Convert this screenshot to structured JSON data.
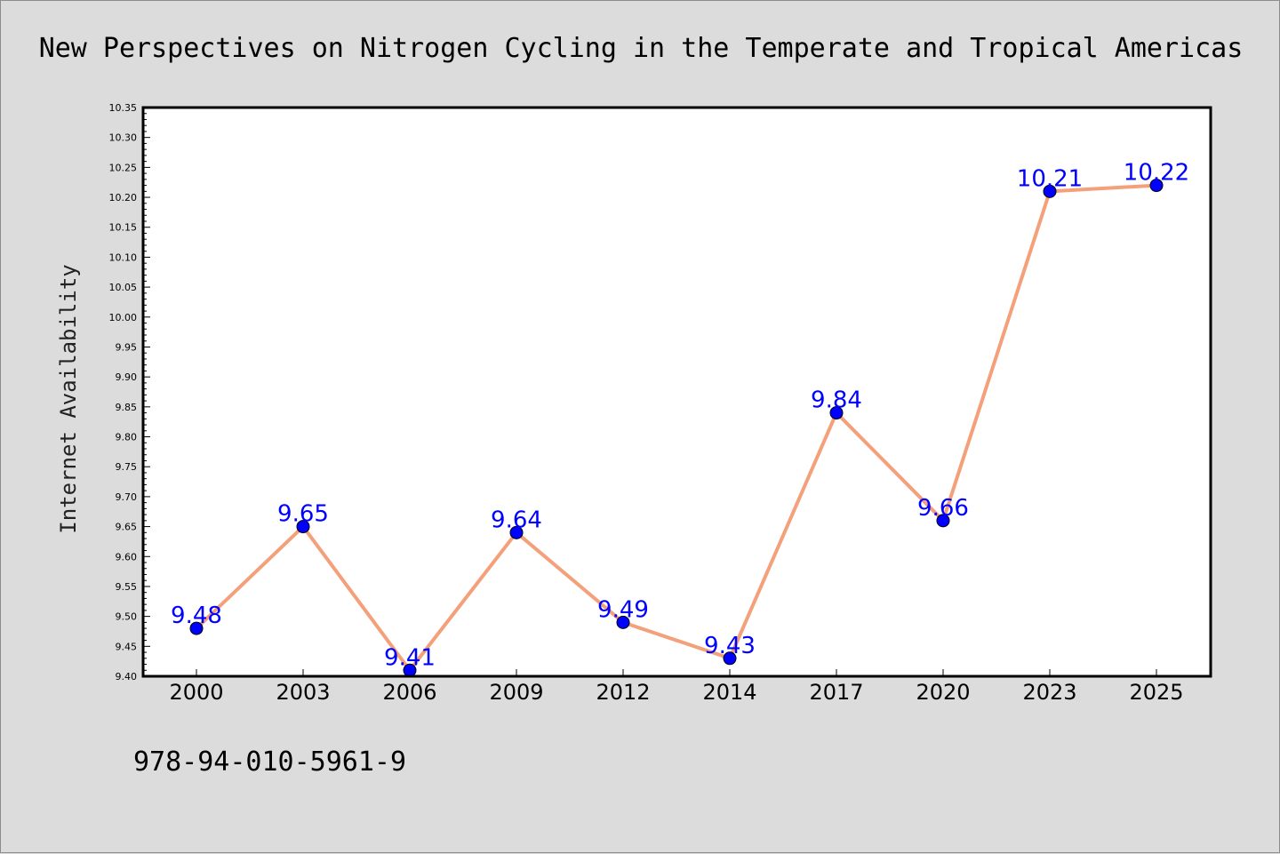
{
  "chart_data": {
    "type": "line",
    "title": "New Perspectives on Nitrogen Cycling in the Temperate and Tropical Americas",
    "xlabel": "",
    "ylabel": "Internet Availability",
    "categories": [
      "2000",
      "2003",
      "2006",
      "2009",
      "2012",
      "2014",
      "2017",
      "2020",
      "2023",
      "2025"
    ],
    "series": [
      {
        "values": [
          9.48,
          9.65,
          9.41,
          9.64,
          9.49,
          9.43,
          9.84,
          9.66,
          10.21,
          10.22
        ],
        "data_labels": [
          "9.48",
          "9.65",
          "9.41",
          "9.64",
          "9.49",
          "9.43",
          "9.84",
          "9.66",
          "10.21",
          "10.22"
        ],
        "line_color": "#f4a07a",
        "marker_color": "#0000ff"
      }
    ],
    "ylim": [
      9.4,
      10.35
    ],
    "yticks": [
      "9.40",
      "9.45",
      "9.50",
      "9.55",
      "9.60",
      "9.65",
      "9.70",
      "9.75",
      "9.80",
      "9.85",
      "9.90",
      "9.95",
      "10.00",
      "10.05",
      "10.10",
      "10.15",
      "10.20",
      "10.25",
      "10.30",
      "10.35"
    ],
    "grid": false,
    "legend": "none",
    "label_color": "#0000ff",
    "background": "#dcdcdc",
    "plot_background": "#ffffff"
  },
  "footer": {
    "isbn": "978-94-010-5961-9"
  }
}
